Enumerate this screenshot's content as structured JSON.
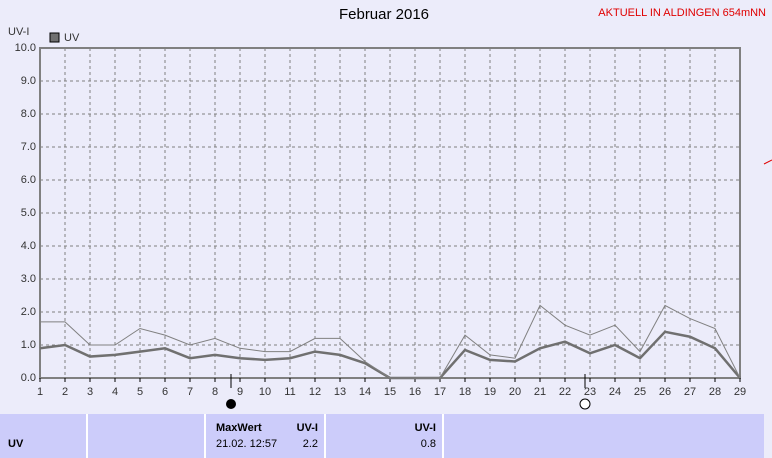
{
  "chart_data": {
    "type": "line",
    "title": "Februar 2016",
    "subtitle": "AKTUELL IN ALDINGEN 654mNN",
    "y_label": "UV-I",
    "x": [
      1,
      2,
      3,
      4,
      5,
      6,
      7,
      8,
      9,
      10,
      11,
      12,
      13,
      14,
      15,
      16,
      17,
      18,
      19,
      20,
      21,
      22,
      23,
      24,
      25,
      26,
      27,
      28,
      29
    ],
    "series": [
      {
        "name": "UV",
        "color": "#707070",
        "values": [
          0.9,
          1.0,
          0.65,
          0.7,
          0.8,
          0.9,
          0.6,
          0.7,
          0.6,
          0.55,
          0.6,
          0.8,
          0.7,
          0.45,
          0,
          0,
          0,
          0.85,
          0.55,
          0.5,
          0.9,
          1.1,
          0.75,
          1.0,
          0.6,
          1.4,
          1.25,
          0.9,
          0
        ]
      },
      {
        "color": "#808080",
        "values": [
          1.7,
          1.7,
          1.0,
          1.0,
          1.5,
          1.3,
          1.0,
          1.2,
          0.9,
          0.8,
          0.8,
          1.2,
          1.2,
          0.5,
          0,
          0,
          0,
          1.3,
          0.7,
          0.6,
          2.2,
          1.6,
          1.3,
          1.6,
          0.8,
          2.2,
          1.8,
          1.5,
          0
        ]
      }
    ],
    "xlim": [
      1,
      29
    ],
    "xticks": [
      1,
      2,
      3,
      4,
      5,
      6,
      7,
      8,
      9,
      10,
      11,
      12,
      13,
      14,
      15,
      16,
      17,
      18,
      19,
      20,
      21,
      22,
      23,
      24,
      25,
      26,
      27,
      28,
      29
    ],
    "ylim": [
      0,
      10
    ],
    "yticks": [
      {
        "value": 0,
        "label": "0.0"
      },
      {
        "value": 1,
        "label": "1.0"
      },
      {
        "value": 2,
        "label": "2.0"
      },
      {
        "value": 3,
        "label": "3.0"
      },
      {
        "value": 4,
        "label": "4.0"
      },
      {
        "value": 5,
        "label": "5.0"
      },
      {
        "value": 6,
        "label": "6.0"
      },
      {
        "value": 7,
        "label": "7.0"
      },
      {
        "value": 8,
        "label": "8.0"
      },
      {
        "value": 9,
        "label": "9.0"
      },
      {
        "value": 10,
        "label": "10.0"
      }
    ],
    "grid": true,
    "legend": "top-left"
  },
  "table": {
    "label": "UV",
    "max_header": "MaxWert",
    "max_unit": "UV-I",
    "max_time": "21.02. 12:57",
    "max_value": "2.2",
    "current_unit": "UV-I",
    "current_value": "0.8"
  }
}
